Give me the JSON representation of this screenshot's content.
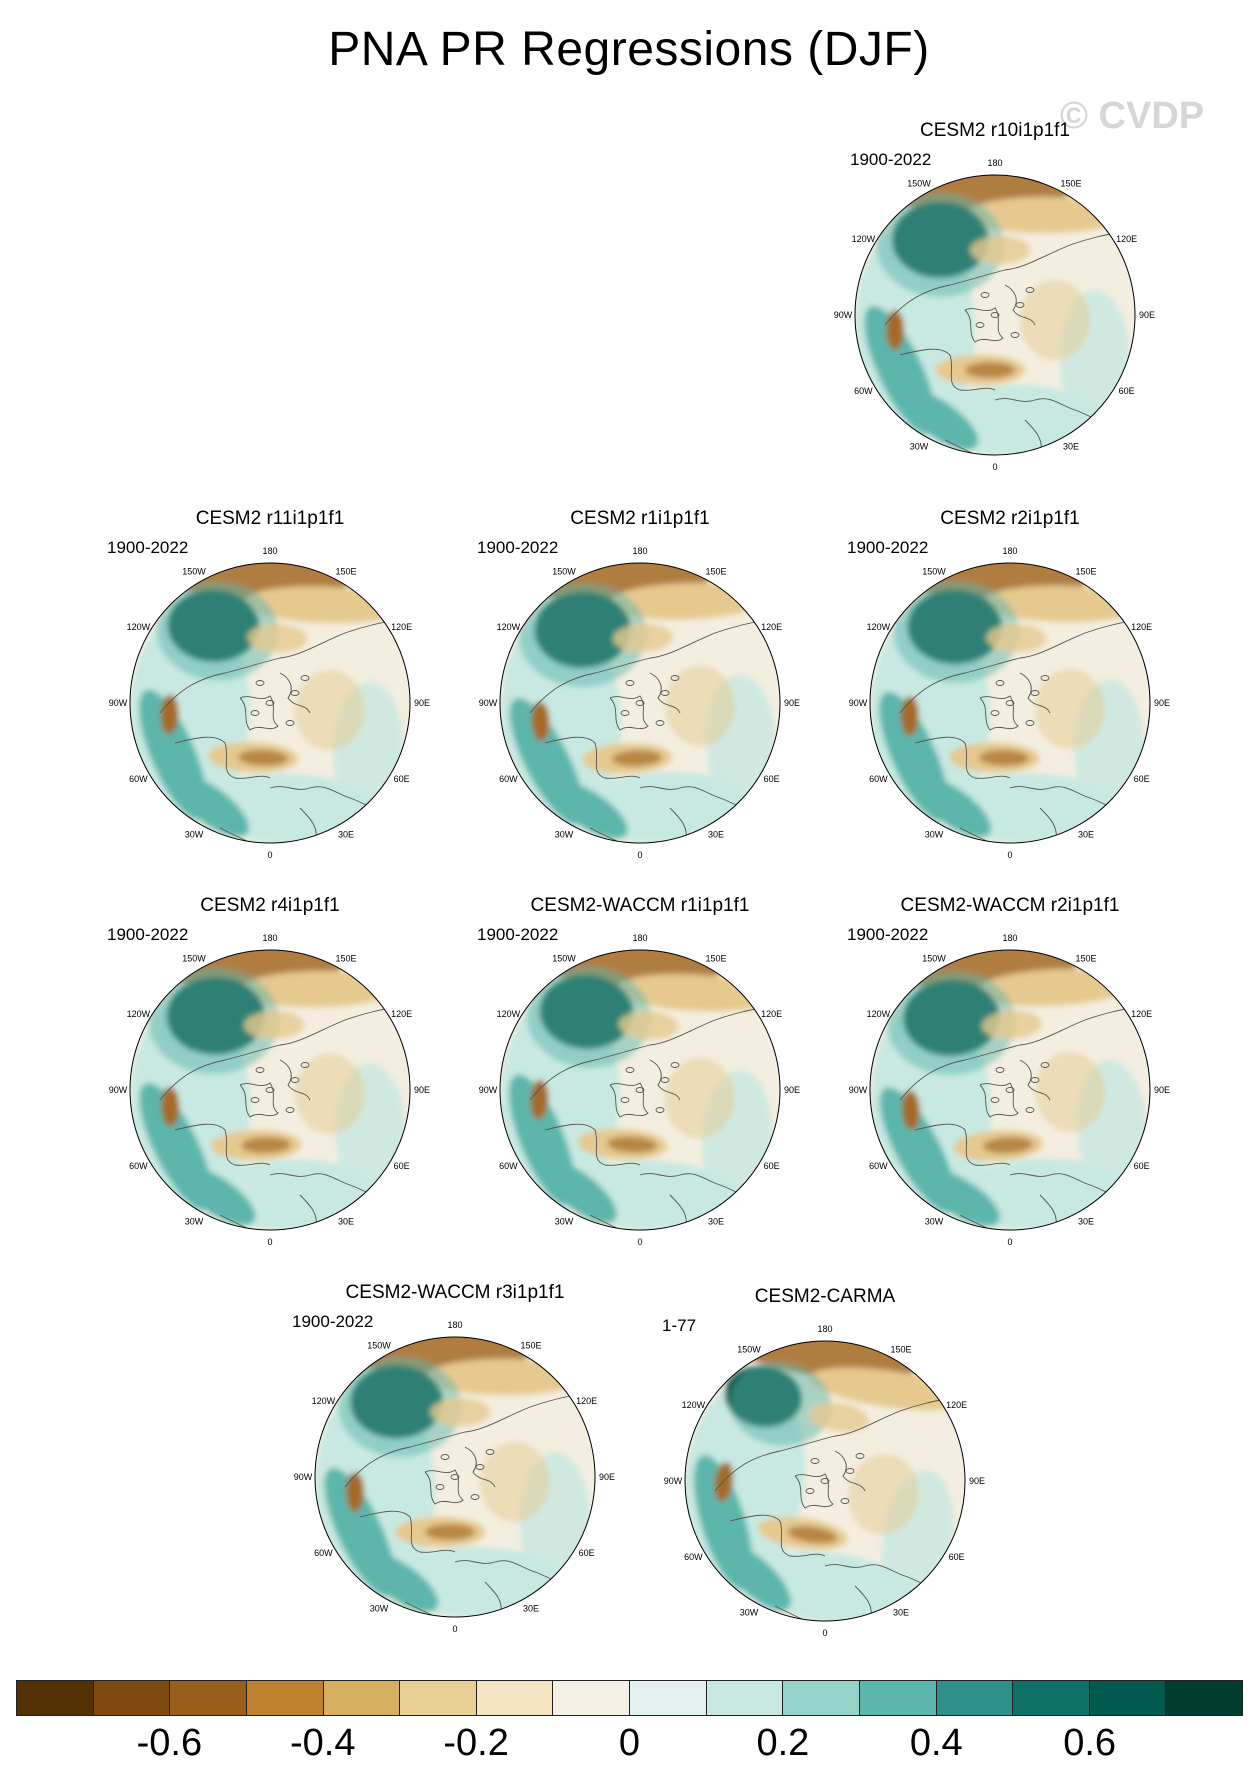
{
  "title": "PNA PR Regressions (DJF)",
  "watermark": "© CVDP",
  "lon_labels": [
    "180",
    "150E",
    "120E",
    "90E",
    "60E",
    "30E",
    "0",
    "30W",
    "60W",
    "90W",
    "120W",
    "150W"
  ],
  "panels": [
    {
      "name": "CESM2 r10i1p1f1",
      "period": "1900-2022"
    },
    {
      "name": "CESM2 r11i1p1f1",
      "period": "1900-2022"
    },
    {
      "name": "CESM2 r1i1p1f1",
      "period": "1900-2022"
    },
    {
      "name": "CESM2 r2i1p1f1",
      "period": "1900-2022"
    },
    {
      "name": "CESM2 r4i1p1f1",
      "period": "1900-2022"
    },
    {
      "name": "CESM2-WACCM r1i1p1f1",
      "period": "1900-2022"
    },
    {
      "name": "CESM2-WACCM r2i1p1f1",
      "period": "1900-2022"
    },
    {
      "name": "CESM2-WACCM r3i1p1f1",
      "period": "1900-2022"
    },
    {
      "name": "CESM2-CARMA",
      "period": "1-77"
    }
  ],
  "colorbar": {
    "colors": [
      "#543005",
      "#7f4a0f",
      "#995e1b",
      "#bf812d",
      "#d6b060",
      "#e8cf93",
      "#f4e4c1",
      "#f5f0e6",
      "#e2f0ef",
      "#c7e9e1",
      "#95d5c9",
      "#5cb6ac",
      "#2f9089",
      "#0f7068",
      "#01594f",
      "#003c30"
    ],
    "labels": [
      "-0.6",
      "-0.4",
      "-0.2",
      "0",
      "0.2",
      "0.4",
      "0.6"
    ]
  },
  "colors": {
    "land_line": "#555555",
    "circle": "#000000",
    "dark_green": "#004a3e",
    "brown": "#a46a25",
    "light_brown": "#e6c98f",
    "teal": "#5cb6ac",
    "light_teal": "#c7e9e1",
    "pale": "#f3eedf"
  }
}
